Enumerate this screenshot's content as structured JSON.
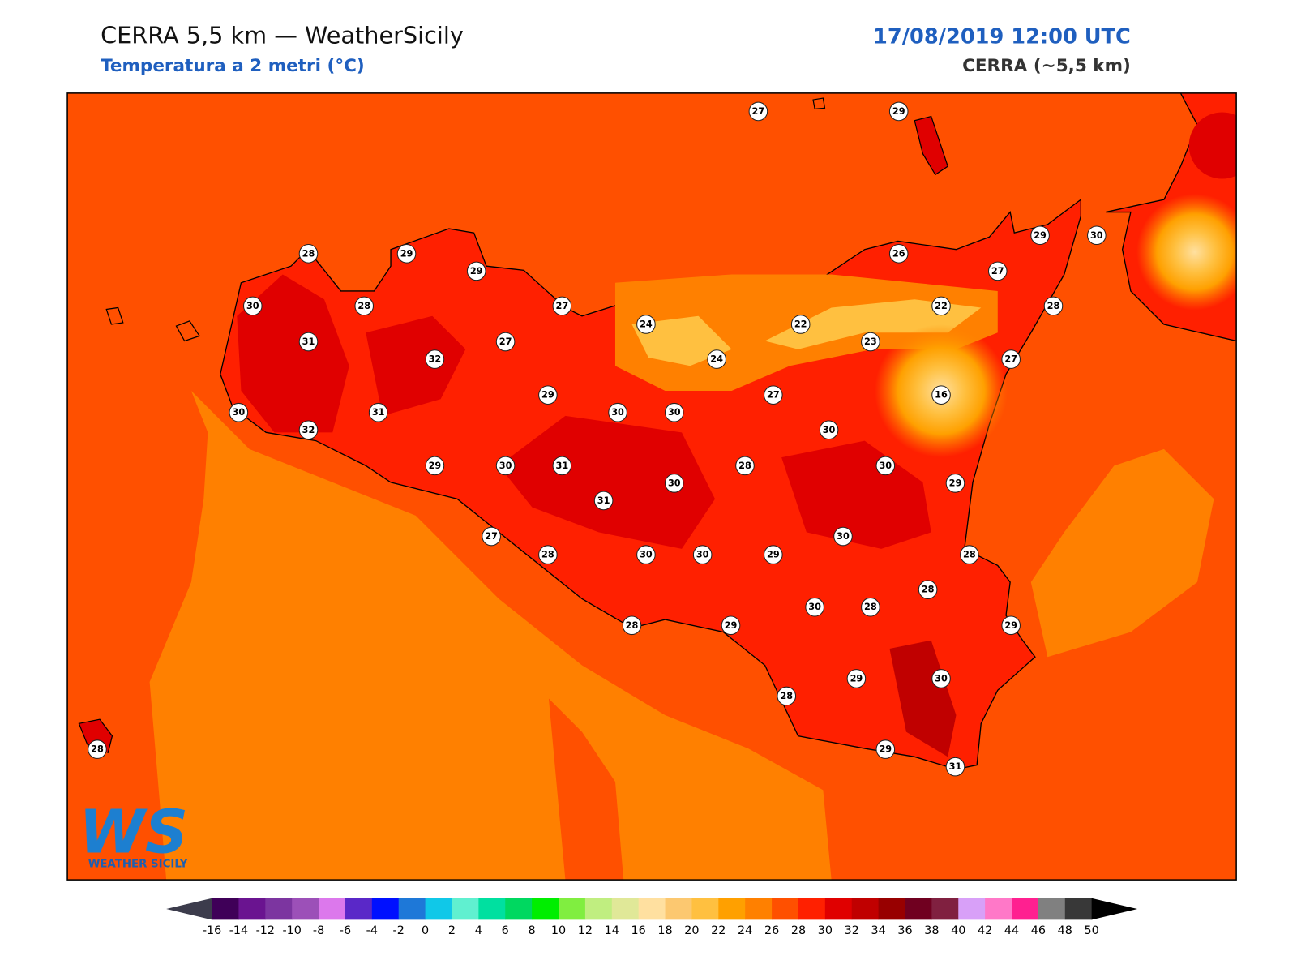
{
  "header": {
    "title": "CERRA 5,5 km — WeatherSicily",
    "subtitle": "Temperatura a 2 metri (°C)",
    "datetime": "17/08/2019 12:00 UTC",
    "model": "CERRA (~5,5 km)"
  },
  "stations": [
    27,
    29,
    28,
    29,
    29,
    26,
    29,
    30,
    27,
    30,
    28,
    27,
    24,
    22,
    22,
    28,
    31,
    27,
    23,
    32,
    24,
    27,
    29,
    27,
    16,
    30,
    31,
    30,
    30,
    32,
    30,
    29,
    30,
    31,
    28,
    30,
    30,
    29,
    31,
    30,
    27,
    28,
    30,
    30,
    29,
    28,
    28,
    30,
    28,
    28,
    29,
    29,
    29,
    30,
    28,
    28,
    29,
    31
  ],
  "colorbar": {
    "ticks": [
      -16,
      -14,
      -12,
      -10,
      -8,
      -6,
      -4,
      -2,
      0,
      2,
      4,
      6,
      8,
      10,
      12,
      14,
      16,
      18,
      20,
      22,
      24,
      26,
      28,
      30,
      32,
      34,
      36,
      38,
      40,
      42,
      44,
      46,
      48,
      50
    ],
    "colors": [
      "#3f0058",
      "#6a1490",
      "#7c35a0",
      "#9c50b8",
      "#dc78ec",
      "#5a28c8",
      "#0010ff",
      "#1e78d8",
      "#10c8e8",
      "#60f0d0",
      "#00e0a0",
      "#00d860",
      "#00ee00",
      "#80ee40",
      "#c0ee80",
      "#e0e898",
      "#ffe0a0",
      "#fcc870",
      "#ffc040",
      "#ffa000",
      "#ff8000",
      "#ff5000",
      "#ff2000",
      "#e00000",
      "#c00000",
      "#980000",
      "#700020",
      "#802040",
      "#d8a0f8",
      "#ff78c8",
      "#ff2090",
      "#808080",
      "#383838"
    ],
    "under_color": "#3c3c4c",
    "over_color": "#000000"
  },
  "logo": {
    "text": "WS",
    "caption": "WEATHER SICILY"
  }
}
